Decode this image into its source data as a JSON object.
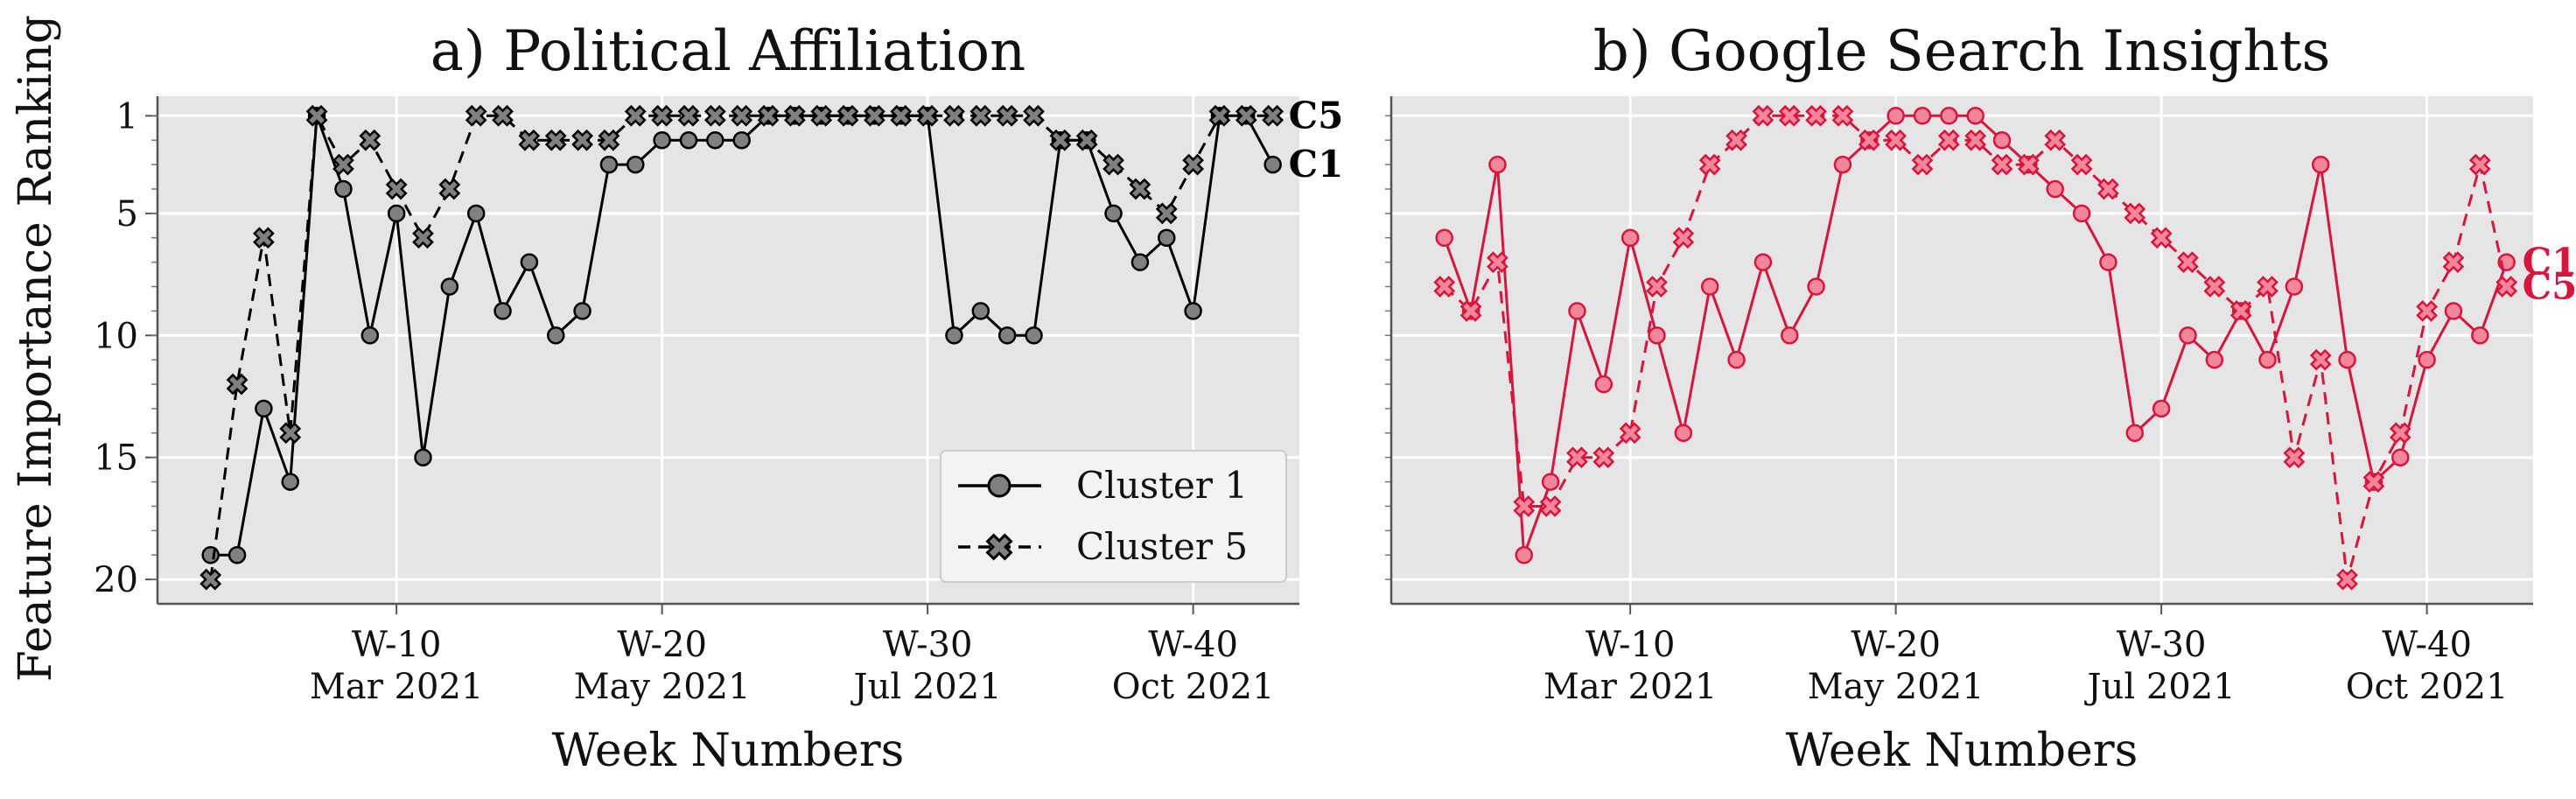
{
  "colors": {
    "panel_bg": "#e5e5e5",
    "grid": "#ffffff",
    "series_black": "#000000",
    "marker_gray": "#808080",
    "series_red": "#dc143c",
    "marker_pink": "#f2869a"
  },
  "figure": {
    "ylabel": "Feature Importance Ranking",
    "xlabel": "Week Numbers"
  },
  "chart_data": [
    {
      "type": "line",
      "title": "a) Political Affiliation",
      "xlabel": "Week Numbers",
      "ylabel": "Feature Importance Ranking",
      "y_inverted": true,
      "ylim": [
        21,
        0.2
      ],
      "xlim": [
        1,
        44
      ],
      "yticks": [
        1,
        5,
        10,
        15,
        20
      ],
      "yticks_minor": true,
      "xticks": [
        {
          "x": 10,
          "week": "W-10",
          "month": "Mar 2021"
        },
        {
          "x": 20,
          "week": "W-20",
          "month": "May 2021"
        },
        {
          "x": 30,
          "week": "W-30",
          "month": "Jul 2021"
        },
        {
          "x": 40,
          "week": "W-40",
          "month": "Oct 2021"
        }
      ],
      "grid": true,
      "legend_position": "lower-right",
      "series": [
        {
          "name": "Cluster 1",
          "end_label": "C1",
          "style": "solid",
          "marker": "circle",
          "x": [
            3,
            4,
            5,
            6,
            7,
            8,
            9,
            10,
            11,
            12,
            13,
            14,
            15,
            16,
            17,
            18,
            19,
            20,
            21,
            22,
            23,
            24,
            25,
            26,
            27,
            28,
            29,
            30,
            31,
            32,
            33,
            34,
            35,
            36,
            37,
            38,
            39,
            40,
            41,
            42,
            43
          ],
          "values": [
            19,
            19,
            13,
            16,
            1,
            4,
            10,
            5,
            15,
            8,
            5,
            9,
            7,
            10,
            9,
            3,
            3,
            2,
            2,
            2,
            2,
            1,
            1,
            1,
            1,
            1,
            1,
            1,
            10,
            9,
            10,
            10,
            2,
            2,
            5,
            7,
            6,
            9,
            1,
            1,
            3
          ]
        },
        {
          "name": "Cluster 5",
          "end_label": "C5",
          "style": "dashed",
          "marker": "x-filled",
          "x": [
            3,
            4,
            5,
            6,
            7,
            8,
            9,
            10,
            11,
            12,
            13,
            14,
            15,
            16,
            17,
            18,
            19,
            20,
            21,
            22,
            23,
            24,
            25,
            26,
            27,
            28,
            29,
            30,
            31,
            32,
            33,
            34,
            35,
            36,
            37,
            38,
            39,
            40,
            41,
            42,
            43
          ],
          "values": [
            20,
            12,
            6,
            14,
            1,
            3,
            2,
            4,
            6,
            4,
            1,
            1,
            2,
            2,
            2,
            2,
            1,
            1,
            1,
            1,
            1,
            1,
            1,
            1,
            1,
            1,
            1,
            1,
            1,
            1,
            1,
            1,
            2,
            2,
            3,
            4,
            5,
            3,
            1,
            1,
            1
          ]
        }
      ]
    },
    {
      "type": "line",
      "title": "b) Google Search Insights",
      "xlabel": "Week Numbers",
      "y_inverted": true,
      "ylim": [
        21,
        0.2
      ],
      "xlim": [
        1,
        44
      ],
      "xticks": [
        {
          "x": 10,
          "week": "W-10",
          "month": "Mar 2021"
        },
        {
          "x": 20,
          "week": "W-20",
          "month": "May 2021"
        },
        {
          "x": 30,
          "week": "W-30",
          "month": "Jul 2021"
        },
        {
          "x": 40,
          "week": "W-40",
          "month": "Oct 2021"
        }
      ],
      "grid": true,
      "series": [
        {
          "name": "",
          "end_label": "C1",
          "style": "solid",
          "marker": "circle",
          "x": [
            3,
            4,
            5,
            6,
            7,
            8,
            9,
            10,
            11,
            12,
            13,
            14,
            15,
            16,
            17,
            18,
            19,
            20,
            21,
            22,
            23,
            24,
            25,
            26,
            27,
            28,
            29,
            30,
            31,
            32,
            33,
            34,
            35,
            36,
            37,
            38,
            39,
            40,
            41,
            42,
            43
          ],
          "values": [
            6,
            9,
            3,
            19,
            16,
            9,
            12,
            6,
            10,
            14,
            8,
            11,
            7,
            10,
            8,
            3,
            2,
            1,
            1,
            1,
            1,
            2,
            3,
            4,
            5,
            7,
            14,
            13,
            10,
            11,
            9,
            11,
            8,
            3,
            11,
            16,
            15,
            11,
            9,
            10,
            7
          ]
        },
        {
          "name": "",
          "end_label": "C5",
          "style": "dashed",
          "marker": "x-filled",
          "x": [
            3,
            4,
            5,
            6,
            7,
            8,
            9,
            10,
            11,
            12,
            13,
            14,
            15,
            16,
            17,
            18,
            19,
            20,
            21,
            22,
            23,
            24,
            25,
            26,
            27,
            28,
            29,
            30,
            31,
            32,
            33,
            34,
            35,
            36,
            37,
            38,
            39,
            40,
            41,
            42,
            43
          ],
          "values": [
            8,
            9,
            7,
            17,
            17,
            15,
            15,
            14,
            8,
            6,
            3,
            2,
            1,
            1,
            1,
            1,
            2,
            2,
            3,
            2,
            2,
            3,
            3,
            2,
            3,
            4,
            5,
            6,
            7,
            8,
            9,
            8,
            15,
            11,
            20,
            16,
            14,
            9,
            7,
            3,
            8
          ]
        }
      ]
    }
  ]
}
